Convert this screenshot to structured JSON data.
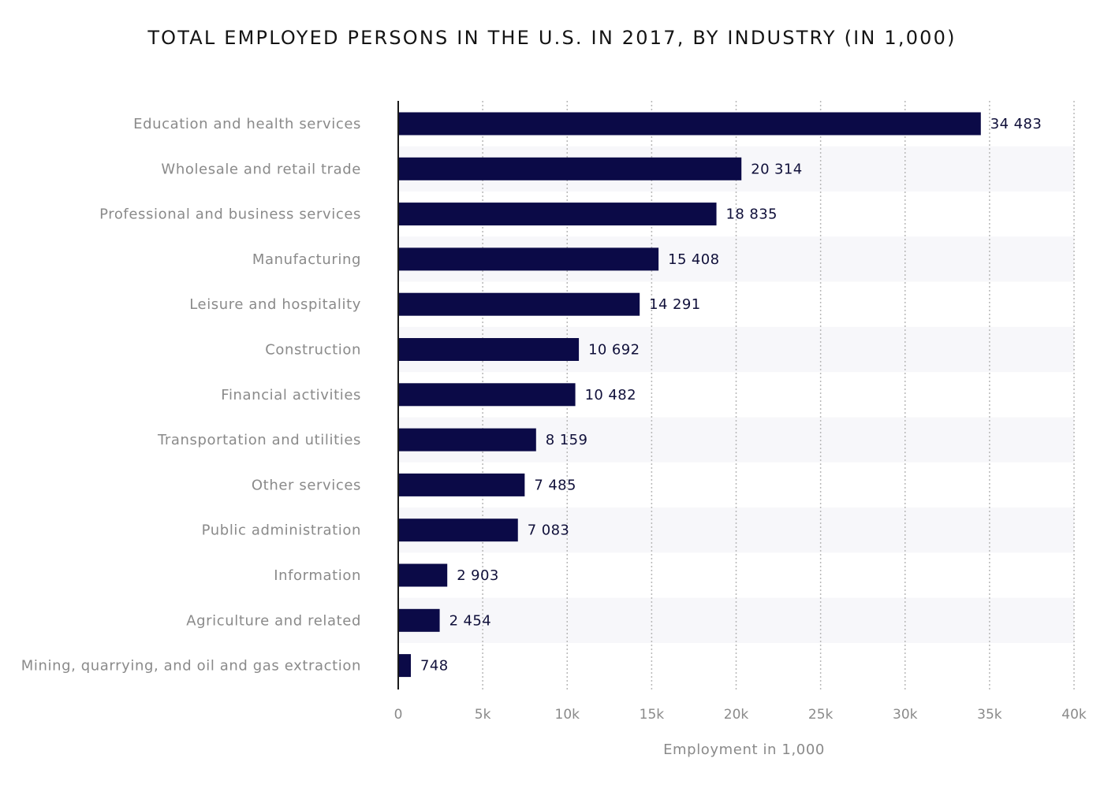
{
  "chart_data": {
    "type": "bar",
    "orientation": "horizontal",
    "title": "TOTAL EMPLOYED PERSONS IN THE U.S. IN 2017, BY INDUSTRY (IN 1,000)",
    "xlabel": "Employment in 1,000",
    "ylabel": "",
    "xlim": [
      0,
      40000
    ],
    "grid": "vertical-dotted",
    "alternating_row_shading": true,
    "categories": [
      "Education and health services",
      "Wholesale and retail trade",
      "Professional and business services",
      "Manufacturing",
      "Leisure and hospitality",
      "Construction",
      "Financial activities",
      "Transportation and utilities",
      "Other services",
      "Public administration",
      "Information",
      "Agriculture and related",
      "Mining, quarrying, and oil and gas extraction"
    ],
    "values": [
      34483,
      20314,
      18835,
      15408,
      14291,
      10692,
      10482,
      8159,
      7485,
      7083,
      2903,
      2454,
      748
    ],
    "value_labels": [
      "34 483",
      "20 314",
      "18 835",
      "15 408",
      "14 291",
      "10 692",
      "10 482",
      "8 159",
      "7 485",
      "7 083",
      "2 903",
      "2 454",
      "748"
    ],
    "x_ticks": [
      0,
      5000,
      10000,
      15000,
      20000,
      25000,
      30000,
      35000,
      40000
    ],
    "x_tick_labels": [
      "0",
      "5k",
      "10k",
      "15k",
      "20k",
      "25k",
      "30k",
      "35k",
      "40k"
    ],
    "colors": {
      "bar": "#0b0a47",
      "row_shade": "#f7f7fa",
      "grid": "#b8b8b8",
      "axis": "#1a1a1a"
    }
  }
}
